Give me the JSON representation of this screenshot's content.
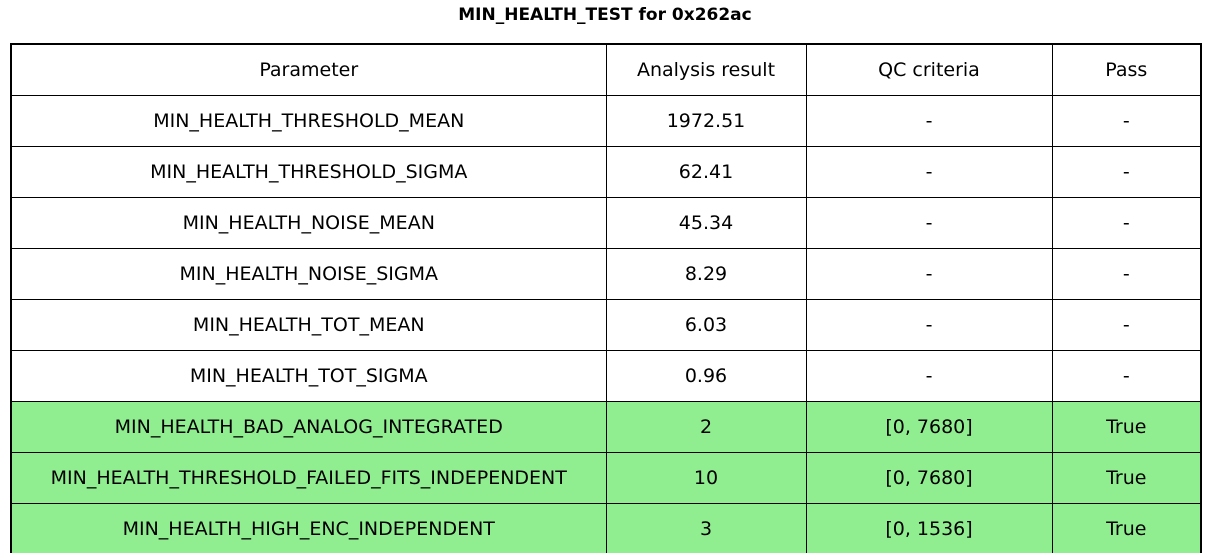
{
  "page": {
    "title": "MIN_HEALTH_TEST for 0x262ac"
  },
  "table": {
    "headers": [
      "Parameter",
      "Analysis result",
      "QC criteria",
      "Pass"
    ],
    "rows": [
      {
        "parameter": "MIN_HEALTH_THRESHOLD_MEAN",
        "analysis_result": "1972.51",
        "qc_criteria": "-",
        "pass": "-",
        "highlighted": false
      },
      {
        "parameter": "MIN_HEALTH_THRESHOLD_SIGMA",
        "analysis_result": "62.41",
        "qc_criteria": "-",
        "pass": "-",
        "highlighted": false
      },
      {
        "parameter": "MIN_HEALTH_NOISE_MEAN",
        "analysis_result": "45.34",
        "qc_criteria": "-",
        "pass": "-",
        "highlighted": false
      },
      {
        "parameter": "MIN_HEALTH_NOISE_SIGMA",
        "analysis_result": "8.29",
        "qc_criteria": "-",
        "pass": "-",
        "highlighted": false
      },
      {
        "parameter": "MIN_HEALTH_TOT_MEAN",
        "analysis_result": "6.03",
        "qc_criteria": "-",
        "pass": "-",
        "highlighted": false
      },
      {
        "parameter": "MIN_HEALTH_TOT_SIGMA",
        "analysis_result": "0.96",
        "qc_criteria": "-",
        "pass": "-",
        "highlighted": false
      },
      {
        "parameter": "MIN_HEALTH_BAD_ANALOG_INTEGRATED",
        "analysis_result": "2",
        "qc_criteria": "[0, 7680]",
        "pass": "True",
        "highlighted": true
      },
      {
        "parameter": "MIN_HEALTH_THRESHOLD_FAILED_FITS_INDEPENDENT",
        "analysis_result": "10",
        "qc_criteria": "[0, 7680]",
        "pass": "True",
        "highlighted": true
      },
      {
        "parameter": "MIN_HEALTH_HIGH_ENC_INDEPENDENT",
        "analysis_result": "3",
        "qc_criteria": "[0, 1536]",
        "pass": "True",
        "highlighted": true
      }
    ]
  },
  "colors": {
    "pass_row_background": "#90ee90",
    "border": "#000000",
    "background": "#ffffff",
    "text": "#000000"
  },
  "chart_data": {
    "type": "table",
    "title": "MIN_HEALTH_TEST for 0x262ac",
    "columns": [
      "Parameter",
      "Analysis result",
      "QC criteria",
      "Pass"
    ],
    "rows": [
      [
        "MIN_HEALTH_THRESHOLD_MEAN",
        "1972.51",
        "-",
        "-"
      ],
      [
        "MIN_HEALTH_THRESHOLD_SIGMA",
        "62.41",
        "-",
        "-"
      ],
      [
        "MIN_HEALTH_NOISE_MEAN",
        "45.34",
        "-",
        "-"
      ],
      [
        "MIN_HEALTH_NOISE_SIGMA",
        "8.29",
        "-",
        "-"
      ],
      [
        "MIN_HEALTH_TOT_MEAN",
        "6.03",
        "-",
        "-"
      ],
      [
        "MIN_HEALTH_TOT_SIGMA",
        "0.96",
        "-",
        "-"
      ],
      [
        "MIN_HEALTH_BAD_ANALOG_INTEGRATED",
        "2",
        "[0, 7680]",
        "True"
      ],
      [
        "MIN_HEALTH_THRESHOLD_FAILED_FITS_INDEPENDENT",
        "10",
        "[0, 7680]",
        "True"
      ],
      [
        "MIN_HEALTH_HIGH_ENC_INDEPENDENT",
        "3",
        "[0, 1536]",
        "True"
      ]
    ],
    "highlighted_rows": [
      6,
      7,
      8
    ],
    "highlight_color": "#90ee90",
    "layout": "title centered above full-width bordered table; all cells center-aligned"
  }
}
